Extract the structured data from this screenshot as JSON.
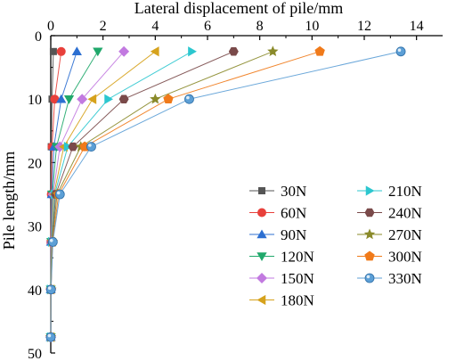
{
  "chart_data": {
    "type": "line",
    "title": "",
    "xlabel": "Lateral displacement of pile/mm",
    "ylabel": "Pile length/mm",
    "x_axis_position": "top",
    "y_axis_inverted": true,
    "xlim": [
      0,
      15
    ],
    "ylim": [
      0,
      50
    ],
    "xticks": [
      0,
      2,
      4,
      6,
      8,
      10,
      12,
      14
    ],
    "yticks": [
      0,
      10,
      20,
      30,
      40,
      50
    ],
    "grid": false,
    "legend_position": "bottom-right",
    "series": [
      {
        "name": "30N",
        "color": "#555555",
        "marker": "square",
        "points": [
          [
            0.1,
            2.5
          ],
          [
            0.05,
            10
          ],
          [
            0.02,
            17.5
          ],
          [
            0.01,
            25
          ],
          [
            0,
            32.5
          ],
          [
            0,
            40
          ],
          [
            0,
            47.5
          ]
        ]
      },
      {
        "name": "60N",
        "color": "#e8403b",
        "marker": "circle",
        "points": [
          [
            0.4,
            2.5
          ],
          [
            0.15,
            10
          ],
          [
            0.05,
            17.5
          ],
          [
            0.02,
            25
          ],
          [
            0,
            32.5
          ],
          [
            0,
            40
          ],
          [
            0,
            47.5
          ]
        ]
      },
      {
        "name": "90N",
        "color": "#2c6fd1",
        "marker": "triangle-up",
        "points": [
          [
            1.0,
            2.5
          ],
          [
            0.4,
            10
          ],
          [
            0.12,
            17.5
          ],
          [
            0.04,
            25
          ],
          [
            0.01,
            32.5
          ],
          [
            0,
            40
          ],
          [
            0,
            47.5
          ]
        ]
      },
      {
        "name": "120N",
        "color": "#20a86b",
        "marker": "triangle-down",
        "points": [
          [
            1.8,
            2.5
          ],
          [
            0.7,
            10
          ],
          [
            0.22,
            17.5
          ],
          [
            0.06,
            25
          ],
          [
            0.02,
            32.5
          ],
          [
            0,
            40
          ],
          [
            0,
            47.5
          ]
        ]
      },
      {
        "name": "150N",
        "color": "#c27ae0",
        "marker": "diamond",
        "points": [
          [
            2.8,
            2.5
          ],
          [
            1.2,
            10
          ],
          [
            0.35,
            17.5
          ],
          [
            0.09,
            25
          ],
          [
            0.02,
            32.5
          ],
          [
            0,
            40
          ],
          [
            0,
            47.5
          ]
        ]
      },
      {
        "name": "180N",
        "color": "#d6a21c",
        "marker": "triangle-left",
        "points": [
          [
            4.0,
            2.5
          ],
          [
            1.6,
            10
          ],
          [
            0.5,
            17.5
          ],
          [
            0.12,
            25
          ],
          [
            0.03,
            32.5
          ],
          [
            0,
            40
          ],
          [
            0,
            47.5
          ]
        ]
      },
      {
        "name": "210N",
        "color": "#2cc7cf",
        "marker": "triangle-right",
        "points": [
          [
            5.4,
            2.5
          ],
          [
            2.2,
            10
          ],
          [
            0.65,
            17.5
          ],
          [
            0.15,
            25
          ],
          [
            0.04,
            32.5
          ],
          [
            0,
            40
          ],
          [
            0,
            47.5
          ]
        ]
      },
      {
        "name": "240N",
        "color": "#7a4a4a",
        "marker": "hexagon",
        "points": [
          [
            7.0,
            2.5
          ],
          [
            2.8,
            10
          ],
          [
            0.85,
            17.5
          ],
          [
            0.19,
            25
          ],
          [
            0.05,
            32.5
          ],
          [
            0.01,
            40
          ],
          [
            0,
            47.5
          ]
        ]
      },
      {
        "name": "270N",
        "color": "#8a8a2a",
        "marker": "star",
        "points": [
          [
            8.5,
            2.5
          ],
          [
            4.0,
            10
          ],
          [
            1.15,
            17.5
          ],
          [
            0.24,
            25
          ],
          [
            0.06,
            32.5
          ],
          [
            0.01,
            40
          ],
          [
            0,
            47.5
          ]
        ]
      },
      {
        "name": "300N",
        "color": "#f07a1a",
        "marker": "pentagon",
        "points": [
          [
            10.3,
            2.5
          ],
          [
            4.5,
            10
          ],
          [
            1.3,
            17.5
          ],
          [
            0.3,
            25
          ],
          [
            0.07,
            32.5
          ],
          [
            0.01,
            40
          ],
          [
            0,
            47.5
          ]
        ]
      },
      {
        "name": "330N",
        "color": "#5c9fd6",
        "marker": "sphere",
        "points": [
          [
            13.4,
            2.5
          ],
          [
            5.3,
            10
          ],
          [
            1.55,
            17.5
          ],
          [
            0.35,
            25
          ],
          [
            0.08,
            32.5
          ],
          [
            0.01,
            40
          ],
          [
            0,
            47.5
          ]
        ]
      }
    ]
  }
}
